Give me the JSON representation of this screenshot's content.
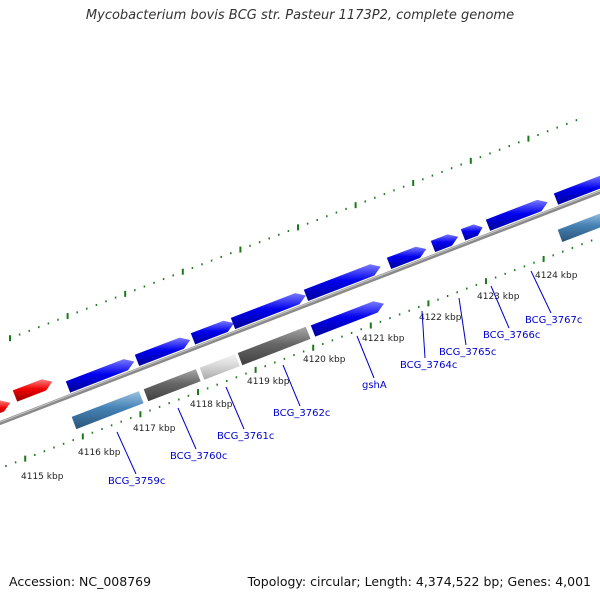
{
  "header": {
    "title": "Mycobacterium bovis BCG str. Pasteur 1173P2, complete genome"
  },
  "footer": {
    "accession": "Accession: NC_008769",
    "genome_info": "Topology: circular; Length: 4,374,522 bp; Genes: 4,001"
  },
  "colors": {
    "forward_gene": "#0000ee",
    "reverse_gene": "#ee0000",
    "rna_like": "#4682b4",
    "backbone": "#8a8a8a",
    "gc_tick": "#1a7a1a",
    "label": "#0000cc",
    "dark_gene": "#666666",
    "light_gene": "#d8d8d8"
  },
  "scale_labels": [
    "4115 kbp",
    "4116 kbp",
    "4117 kbp",
    "4118 kbp",
    "4119 kbp",
    "4120 kbp",
    "4121 kbp",
    "4122 kbp",
    "4123 kbp",
    "4124 kbp"
  ],
  "gene_labels": [
    "BCG_3759c",
    "BCG_3760c",
    "BCG_3761c",
    "BCG_3762c",
    "gshA",
    "BCG_3764c",
    "BCG_3765c",
    "BCG_3766c",
    "BCG_3767c"
  ]
}
